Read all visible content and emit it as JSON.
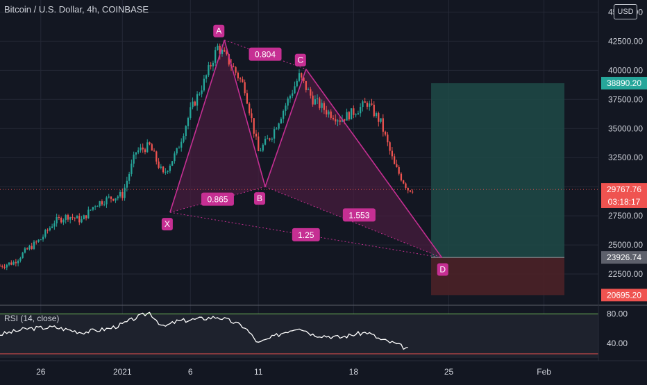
{
  "header": {
    "title": "Bitcoin / U.S. Dollar, 4h, COINBASE",
    "currency_button": "USD"
  },
  "colors": {
    "background": "#131722",
    "grid": "#242836",
    "up": "#26a69a",
    "down": "#ef5350",
    "pattern": "#c62f93",
    "pattern_fill": "#4a1c3e",
    "target_zone": "#1e4a47",
    "stop_zone": "#4b2127",
    "rsi_line": "#ffffff",
    "rsi_upper": "#6fb65a",
    "rsi_lower": "#ef5350"
  },
  "chart_data": [
    {
      "type": "candlestick",
      "title": "Bitcoin / U.S. Dollar, 4h, COINBASE",
      "x_ticks": [
        "26",
        "2021",
        "6",
        "11",
        "18",
        "25",
        "Feb"
      ],
      "y_ticks": [
        "45000.00",
        "42500.00",
        "40000.00",
        "37500.00",
        "35000.00",
        "32500.00",
        "30000.00",
        "27500.00",
        "25000.00",
        "22500.00"
      ],
      "ylim": [
        20000,
        45800
      ],
      "x_domain": [
        "2020-12-23",
        "2021-02-05"
      ],
      "grid": true,
      "pattern": {
        "name": "XABCD",
        "points": [
          {
            "label": "X",
            "date": "2021-01-04",
            "value": 27800
          },
          {
            "label": "A",
            "date": "2021-01-08",
            "value": 42600
          },
          {
            "label": "B",
            "date": "2021-01-11",
            "value": 30000
          },
          {
            "label": "C",
            "date": "2021-01-14",
            "value": 40100
          },
          {
            "label": "D",
            "date": "2021-01-24",
            "value": 23900
          }
        ],
        "ratios": [
          "0.804",
          "0.865",
          "1.553",
          "1.25"
        ]
      },
      "position": {
        "entry": 23926.74,
        "target": 38890.2,
        "stop": 20695.2,
        "start_date": "2021-01-23",
        "end_date": "2021-02-02"
      },
      "price_labels": [
        {
          "text": "38890.20",
          "value": 38890.2,
          "role": "target"
        },
        {
          "text": "29767.76",
          "value": 29767.76,
          "role": "last"
        },
        {
          "text": "03:18:17",
          "value": 28700,
          "role": "countdown"
        },
        {
          "text": "23926.74",
          "value": 23926.74,
          "role": "entry"
        },
        {
          "text": "20695.20",
          "value": 20695.2,
          "role": "stop"
        }
      ],
      "last_price": 29767.76,
      "candle_anchors": [
        {
          "date": "2020-12-23",
          "value": 23200
        },
        {
          "date": "2020-12-24",
          "value": 23500
        },
        {
          "date": "2020-12-25",
          "value": 24600
        },
        {
          "date": "2020-12-26",
          "value": 25500
        },
        {
          "date": "2020-12-27",
          "value": 27000
        },
        {
          "date": "2020-12-28",
          "value": 27500
        },
        {
          "date": "2020-12-29",
          "value": 27100
        },
        {
          "date": "2020-12-30",
          "value": 28500
        },
        {
          "date": "2020-12-31",
          "value": 29000
        },
        {
          "date": "2021-01-01",
          "value": 29300
        },
        {
          "date": "2021-01-02",
          "value": 33000
        },
        {
          "date": "2021-01-03",
          "value": 33500
        },
        {
          "date": "2021-01-04",
          "value": 31000
        },
        {
          "date": "2021-01-05",
          "value": 33000
        },
        {
          "date": "2021-01-06",
          "value": 36500
        },
        {
          "date": "2021-01-07",
          "value": 39000
        },
        {
          "date": "2021-01-08",
          "value": 42000
        },
        {
          "date": "2021-01-09",
          "value": 40500
        },
        {
          "date": "2021-01-10",
          "value": 38500
        },
        {
          "date": "2021-01-11",
          "value": 33000
        },
        {
          "date": "2021-01-12",
          "value": 34500
        },
        {
          "date": "2021-01-13",
          "value": 37000
        },
        {
          "date": "2021-01-14",
          "value": 39500
        },
        {
          "date": "2021-01-15",
          "value": 37500
        },
        {
          "date": "2021-01-16",
          "value": 36500
        },
        {
          "date": "2021-01-17",
          "value": 35800
        },
        {
          "date": "2021-01-18",
          "value": 36400
        },
        {
          "date": "2021-01-19",
          "value": 37200
        },
        {
          "date": "2021-01-20",
          "value": 35500
        },
        {
          "date": "2021-01-21",
          "value": 31800
        },
        {
          "date": "2021-01-22",
          "value": 29800
        }
      ]
    },
    {
      "type": "line",
      "title": "RSI (14, close)",
      "y_ticks": [
        "80.00",
        "40.00"
      ],
      "ylim": [
        20,
        92
      ],
      "bands": [
        80,
        20
      ],
      "series": [
        {
          "name": "RSI (14, close)",
          "color": "#ffffff",
          "points": [
            {
              "date": "2020-12-23",
              "value": 52
            },
            {
              "date": "2020-12-25",
              "value": 60
            },
            {
              "date": "2020-12-27",
              "value": 62
            },
            {
              "date": "2020-12-29",
              "value": 55
            },
            {
              "date": "2020-12-31",
              "value": 60
            },
            {
              "date": "2021-01-01",
              "value": 66
            },
            {
              "date": "2021-01-02",
              "value": 75
            },
            {
              "date": "2021-01-03",
              "value": 82
            },
            {
              "date": "2021-01-04",
              "value": 62
            },
            {
              "date": "2021-01-05",
              "value": 70
            },
            {
              "date": "2021-01-06",
              "value": 72
            },
            {
              "date": "2021-01-07",
              "value": 74
            },
            {
              "date": "2021-01-08",
              "value": 76
            },
            {
              "date": "2021-01-09",
              "value": 70
            },
            {
              "date": "2021-01-10",
              "value": 62
            },
            {
              "date": "2021-01-11",
              "value": 40
            },
            {
              "date": "2021-01-12",
              "value": 48
            },
            {
              "date": "2021-01-13",
              "value": 56
            },
            {
              "date": "2021-01-14",
              "value": 62
            },
            {
              "date": "2021-01-15",
              "value": 52
            },
            {
              "date": "2021-01-16",
              "value": 50
            },
            {
              "date": "2021-01-17",
              "value": 48
            },
            {
              "date": "2021-01-18",
              "value": 52
            },
            {
              "date": "2021-01-19",
              "value": 55
            },
            {
              "date": "2021-01-20",
              "value": 45
            },
            {
              "date": "2021-01-21",
              "value": 40
            },
            {
              "date": "2021-01-22",
              "value": 32
            }
          ]
        }
      ]
    }
  ]
}
